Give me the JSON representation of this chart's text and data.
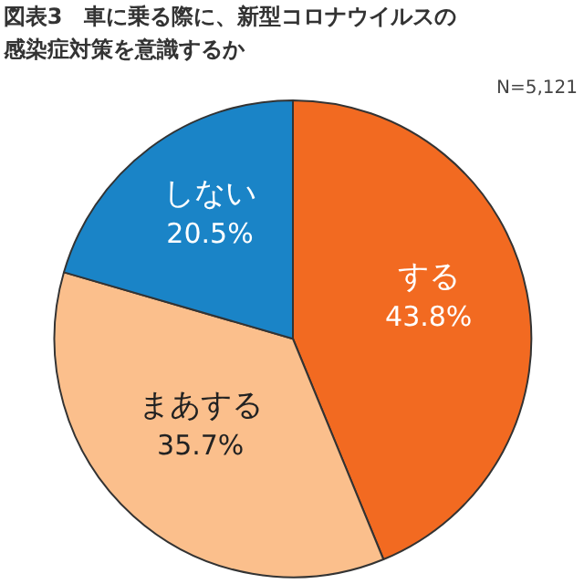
{
  "chart_data": {
    "type": "pie",
    "title": "図表3　車に乗る際に、新型コロナウイルスの感染症対策を意識するか",
    "categories": [
      "する",
      "まあする",
      "しない"
    ],
    "values": [
      43.8,
      35.7,
      20.5
    ],
    "colors": [
      "#f26a21",
      "#fbbf8c",
      "#1a84c7"
    ],
    "value_labels": [
      "43.8%",
      "35.7%",
      "20.5%"
    ],
    "annotations": [
      "N=5,121"
    ]
  }
}
